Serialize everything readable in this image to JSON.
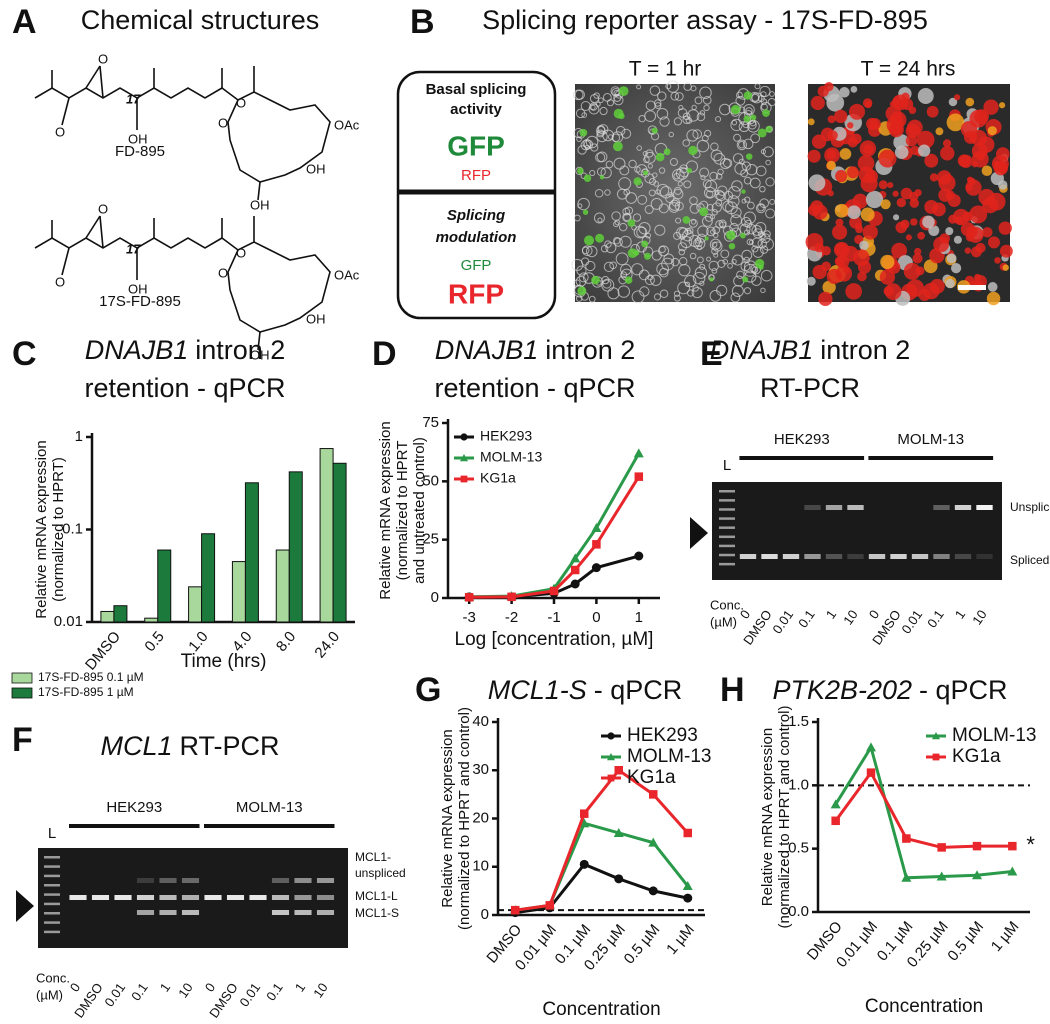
{
  "panel_a": {
    "letter": "A",
    "title": "Chemical structures",
    "structures": [
      {
        "name": "FD-895",
        "atoms": [
          "O",
          "17",
          "OH",
          "O",
          "O",
          "O",
          "OAc",
          "OH",
          "OH"
        ]
      },
      {
        "name": "17S-FD-895",
        "atoms": [
          "O",
          "17",
          "OH",
          "O",
          "O",
          "O",
          "OAc",
          "OH",
          "OH"
        ]
      }
    ]
  },
  "panel_b": {
    "letter": "B",
    "title": "Splicing reporter assay - 17S-FD-895",
    "box_top": [
      "Basal splicing",
      "activity",
      "GFP",
      "RFP"
    ],
    "box_bottom": [
      "Splicing",
      "modulation",
      "GFP",
      "RFP"
    ],
    "images": [
      "T = 1 hr",
      "T = 24 hrs"
    ]
  },
  "panel_e": {
    "letter": "E",
    "title_italic": "DNAJB1",
    "title_rest": "intron 2",
    "title_line2": "RT-PCR",
    "ladder": "L",
    "groups": [
      "HEK293",
      "MOLM-13"
    ],
    "lanes": [
      "0",
      "DMSO",
      "0.01",
      "0.1",
      "1",
      "10",
      "0",
      "DMSO",
      "0.01",
      "0.1",
      "1",
      "10"
    ],
    "conc": [
      "Conc.",
      "(µM)"
    ],
    "bands": [
      "Unspliced",
      "Spliced"
    ]
  },
  "panel_f": {
    "letter": "F",
    "title_italic": "MCL1",
    "title_rest": "RT-PCR",
    "ladder": "L",
    "groups": [
      "HEK293",
      "MOLM-13"
    ],
    "lanes": [
      "0",
      "DMSO",
      "0.01",
      "0.1",
      "1",
      "10",
      "0",
      "DMSO",
      "0.01",
      "0.1",
      "1",
      "10"
    ],
    "conc": [
      "Conc.",
      "(µM)"
    ],
    "bands": [
      "MCL1-",
      "unspliced",
      "MCL1-L",
      "MCL1-S"
    ]
  },
  "chart_data": [
    {
      "type": "bar",
      "panel": "C",
      "title_italic": "DNAJB1",
      "title_rest": "intron 2",
      "title_line2": "retention - qPCR",
      "ylabel": [
        "Relative mRNA expression",
        "(normalized to HPRT)"
      ],
      "xlabel": "Time (hrs)",
      "log_y": true,
      "ylim": [
        0.01,
        1
      ],
      "yticks": [
        0.01,
        0.1,
        1
      ],
      "legend": "below",
      "categories": [
        "DMSO",
        "0.5",
        "1.0",
        "4.0",
        "8.0",
        "24.0"
      ],
      "series": [
        {
          "name": "17S-FD-895 0.1 µM",
          "color": "#a8d89c",
          "values": [
            0.013,
            0.011,
            0.024,
            0.045,
            0.06,
            0.75
          ]
        },
        {
          "name": "17S-FD-895 1 µM",
          "color": "#1b7a3c",
          "values": [
            0.015,
            0.06,
            0.09,
            0.32,
            0.42,
            0.52
          ]
        }
      ]
    },
    {
      "type": "line",
      "panel": "D",
      "title_italic": "DNAJB1",
      "title_rest": "intron 2",
      "title_line2": "retention - qPCR",
      "ylabel": [
        "Relative mRNA expression",
        "(normalized to HPRT",
        "and untreated control)"
      ],
      "xlabel": "Log [concentration, µM]",
      "x": [
        -3,
        -2,
        -1,
        -0.5,
        0,
        1
      ],
      "xlim": [
        -3.5,
        1.5
      ],
      "xticks": [
        -3,
        -2,
        -1,
        0,
        1
      ],
      "ylim": [
        0,
        75
      ],
      "yticks": [
        0,
        25,
        50,
        75
      ],
      "legend": "upper left",
      "series": [
        {
          "name": "HEK293",
          "color": "#111111",
          "marker": "circle",
          "values": [
            0.5,
            0.5,
            2,
            6,
            13,
            18
          ]
        },
        {
          "name": "MOLM-13",
          "color": "#2a9a4a",
          "marker": "triangle",
          "values": [
            0.5,
            0.8,
            4,
            17,
            30,
            62
          ]
        },
        {
          "name": "KG1a",
          "color": "#e8262b",
          "marker": "square",
          "values": [
            0.3,
            0.5,
            3,
            12,
            23,
            52
          ]
        }
      ]
    },
    {
      "type": "line",
      "panel": "G",
      "title_italic": "MCL1-S",
      "title_rest": "- qPCR",
      "ylabel": [
        "Relative mRNA expression",
        "(normalized to HPRT and control)"
      ],
      "xlabel": "Concentration",
      "categories": [
        "DMSO",
        "0.01 µM",
        "0.1 µM",
        "0.25 µM",
        "0.5 µM",
        "1 µM"
      ],
      "ylim": [
        0,
        40
      ],
      "yticks": [
        0,
        10,
        20,
        30,
        40
      ],
      "reference_line": 1,
      "legend": "upper right",
      "series": [
        {
          "name": "HEK293",
          "color": "#111111",
          "marker": "circle",
          "values": [
            0.5,
            1.5,
            10.5,
            7.5,
            5,
            3.5
          ]
        },
        {
          "name": "MOLM-13",
          "color": "#2a9a4a",
          "marker": "triangle",
          "values": [
            1,
            2,
            19,
            17,
            15,
            6
          ]
        },
        {
          "name": "KG1a",
          "color": "#e8262b",
          "marker": "square",
          "values": [
            1,
            2,
            21,
            30,
            25,
            17
          ]
        }
      ]
    },
    {
      "type": "line",
      "panel": "H",
      "title_italic": "PTK2B-202",
      "title_rest": "- qPCR",
      "ylabel": [
        "Relative mRNA expression",
        "(normalized to HPRT and control)"
      ],
      "xlabel": "Concentration",
      "categories": [
        "DMSO",
        "0.01 µM",
        "0.1 µM",
        "0.25 µM",
        "0.5 µM",
        "1 µM"
      ],
      "ylim": [
        0,
        1.5
      ],
      "yticks": [
        {
          "value": 0,
          "label": "0.0"
        },
        0.5,
        {
          "value": 1,
          "label": "1.0"
        },
        1.5
      ],
      "reference_line": 1,
      "legend": "upper right",
      "annotation": "*",
      "series": [
        {
          "name": "MOLM-13",
          "color": "#2a9a4a",
          "marker": "triangle",
          "values": [
            0.85,
            1.3,
            0.27,
            0.28,
            0.29,
            0.32
          ]
        },
        {
          "name": "KG1a",
          "color": "#e8262b",
          "marker": "square",
          "values": [
            0.72,
            1.1,
            0.58,
            0.51,
            0.52,
            0.52
          ]
        }
      ]
    }
  ]
}
